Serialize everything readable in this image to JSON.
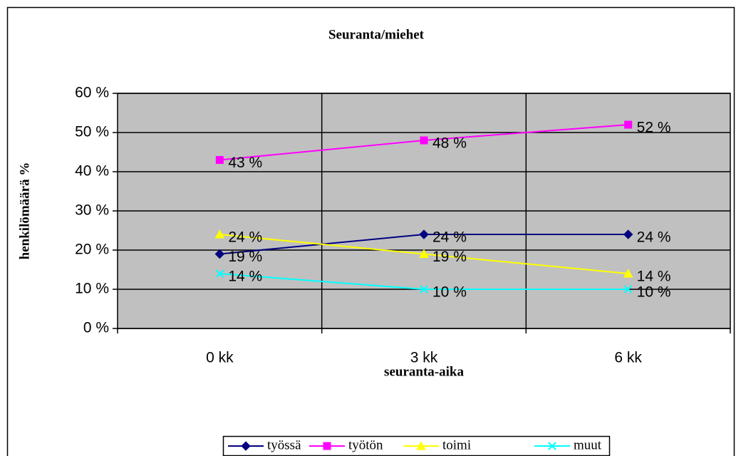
{
  "chart_data": {
    "type": "line",
    "title": "Seuranta/miehet",
    "xlabel": "seuranta-aika",
    "ylabel": "henkilömäärä %",
    "categories": [
      "0 kk",
      "3 kk",
      "6 kk"
    ],
    "series": [
      {
        "name": "työssä",
        "color": "#000080",
        "marker": "diamond",
        "values": [
          19,
          24,
          24
        ],
        "value_labels": [
          "19 %",
          "24 %",
          "24 %"
        ]
      },
      {
        "name": "työtön",
        "color": "#FF00FF",
        "marker": "square",
        "values": [
          43,
          48,
          52
        ],
        "value_labels": [
          "43 %",
          "48 %",
          "52 %"
        ]
      },
      {
        "name": "toimi",
        "color": "#FFFF00",
        "marker": "triangle",
        "values": [
          24,
          19,
          14
        ],
        "value_labels": [
          "24 %",
          "19 %",
          "14 %"
        ]
      },
      {
        "name": "muut",
        "color": "#00FFFF",
        "marker": "x",
        "values": [
          14,
          10,
          10
        ],
        "value_labels": [
          "14 %",
          "10 %",
          "10 %"
        ]
      }
    ],
    "ylim": [
      0,
      60
    ],
    "yticks": [
      {
        "value": 0,
        "label": "0 %"
      },
      {
        "value": 10,
        "label": "10 %"
      },
      {
        "value": 20,
        "label": "20 %"
      },
      {
        "value": 30,
        "label": "30 %"
      },
      {
        "value": 40,
        "label": "40 %"
      },
      {
        "value": 50,
        "label": "50 %"
      },
      {
        "value": 60,
        "label": "60 %"
      }
    ],
    "grid": true,
    "legend": "bottom"
  }
}
